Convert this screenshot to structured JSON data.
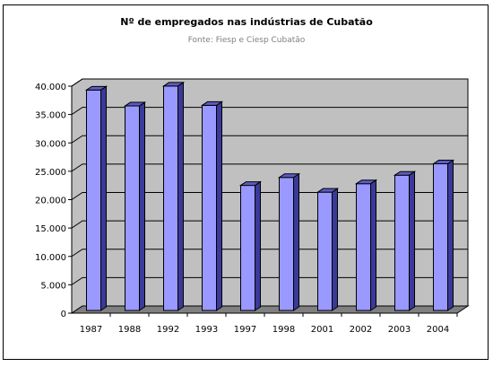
{
  "chart_data": {
    "type": "bar",
    "title": "Nº de empregados nas indústrias de Cubatão",
    "subtitle": "Fonte: Fiesp e Ciesp Cubatão",
    "xlabel": "",
    "ylabel": "",
    "categories": [
      "1987",
      "1988",
      "1992",
      "1993",
      "1997",
      "1998",
      "2001",
      "2002",
      "2003",
      "2004"
    ],
    "values": [
      39000,
      36200,
      39700,
      36300,
      22200,
      23600,
      21000,
      22500,
      24000,
      26000
    ],
    "ylim": [
      0,
      40000
    ],
    "ytick_values": [
      0,
      5000,
      10000,
      15000,
      20000,
      25000,
      30000,
      35000,
      40000
    ],
    "ytick_labels": [
      "0",
      "5.000",
      "10.000",
      "15.000",
      "20.000",
      "25.000",
      "30.000",
      "35.000",
      "40.000"
    ],
    "grid": true,
    "legend": "none",
    "colors": {
      "bar_front": "#9999ff",
      "bar_side": "#3a3a9a",
      "bar_top": "#5c5cc4",
      "plot_back": "#c0c0c0",
      "floor": "#808080"
    }
  }
}
